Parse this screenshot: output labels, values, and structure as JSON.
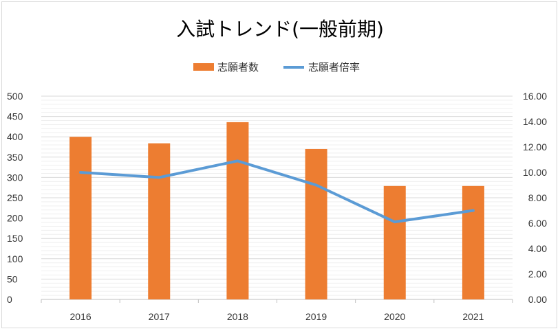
{
  "chart_data": {
    "type": "bar",
    "title": "入試トレンド(一般前期)",
    "categories": [
      "2016",
      "2017",
      "2018",
      "2019",
      "2020",
      "2021"
    ],
    "series": [
      {
        "name": "志願者数",
        "type": "bar",
        "axis": "left",
        "color": "#ED7D31",
        "values": [
          400,
          384,
          436,
          370,
          279,
          279
        ]
      },
      {
        "name": "志願者倍率",
        "type": "line",
        "axis": "right",
        "color": "#5B9BD5",
        "values": [
          10.0,
          9.6,
          10.9,
          9.0,
          6.1,
          7.0
        ]
      }
    ],
    "y_left": {
      "lim": [
        0,
        500
      ],
      "ticks": [
        "0",
        "50",
        "100",
        "150",
        "200",
        "250",
        "300",
        "350",
        "400",
        "450",
        "500"
      ]
    },
    "y_right": {
      "lim": [
        0,
        16
      ],
      "ticks": [
        "0.00",
        "2.00",
        "4.00",
        "6.00",
        "8.00",
        "10.00",
        "12.00",
        "14.00",
        "16.00"
      ]
    },
    "grid": true,
    "legend": "top"
  }
}
